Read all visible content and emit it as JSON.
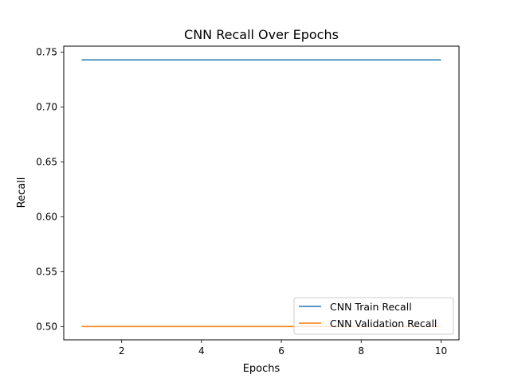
{
  "chart_data": {
    "type": "line",
    "title": "CNN Recall Over Epochs",
    "xlabel": "Epochs",
    "ylabel": "Recall",
    "x": [
      1,
      2,
      3,
      4,
      5,
      6,
      7,
      8,
      9,
      10
    ],
    "xlim": [
      0.55,
      10.45
    ],
    "ylim": [
      0.4879,
      0.7555
    ],
    "xticks": [
      2,
      4,
      6,
      8,
      10
    ],
    "xtick_labels": [
      "2",
      "4",
      "6",
      "8",
      "10"
    ],
    "yticks": [
      0.5,
      0.55,
      0.6,
      0.65,
      0.7,
      0.75
    ],
    "ytick_labels": [
      "0.50",
      "0.55",
      "0.60",
      "0.65",
      "0.70",
      "0.75"
    ],
    "grid": false,
    "legend_position": "lower-right",
    "series": [
      {
        "name": "CNN Train Recall",
        "color": "#1f77b4",
        "values": [
          0.743,
          0.743,
          0.743,
          0.743,
          0.743,
          0.743,
          0.743,
          0.743,
          0.743,
          0.743
        ]
      },
      {
        "name": "CNN Validation Recall",
        "color": "#ff7f0e",
        "values": [
          0.5,
          0.5,
          0.5,
          0.5,
          0.5,
          0.5,
          0.5,
          0.5,
          0.5,
          0.5
        ]
      }
    ]
  }
}
